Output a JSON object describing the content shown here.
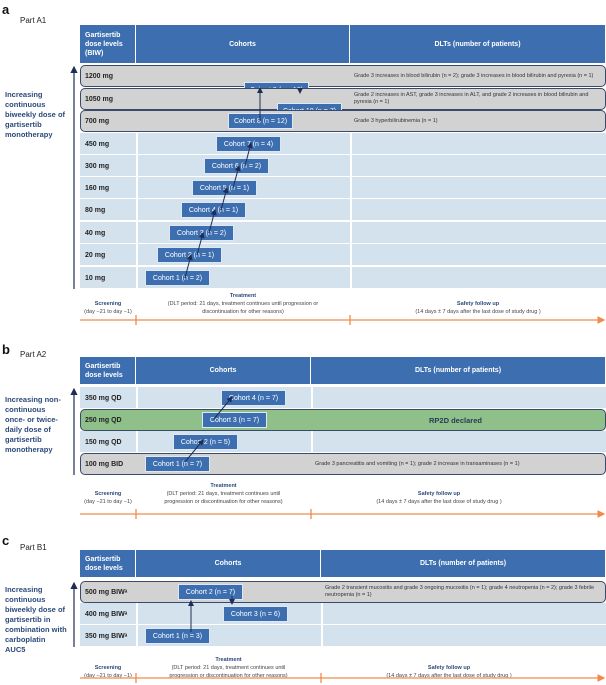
{
  "panels": [
    {
      "letter": "a",
      "part": "Part A1",
      "headers": [
        "Gartisertib dose levels (BIW)",
        "Cohorts",
        "DLTs (number of patients)"
      ],
      "side_label": "Increasing continuous biweekly dose of gartisertib monotherapy",
      "rows": [
        {
          "dose": "1200 mg",
          "cohort": "Cohort 9 (n = 10)",
          "dlt": "Grade 3 increases in blood bilirubin (n = 2); grade 3 increases in blood bilirubin and pyrexia (n = 1)",
          "style": "highlight"
        },
        {
          "dose": "1050 mg",
          "cohort": "Cohort 10 (n = 7)",
          "dlt": "Grade 2 increases in AST, grade 3 increases in ALT, and grade 2 increases in blood bilirubin and pyrexia (n = 1)",
          "style": "highlight"
        },
        {
          "dose": "700 mg",
          "cohort": "Cohort 8 (n = 12)",
          "dlt": "Grade 3 hyperbilirubinemia (n = 1)",
          "style": "highlight"
        },
        {
          "dose": "450 mg",
          "cohort": "Cohort 7 (n = 4)",
          "dlt": "",
          "style": "normal"
        },
        {
          "dose": "300 mg",
          "cohort": "Cohort 6 (n = 2)",
          "dlt": "",
          "style": "normal"
        },
        {
          "dose": "160 mg",
          "cohort": "Cohort 5 (n = 1)",
          "dlt": "",
          "style": "normal"
        },
        {
          "dose": "80 mg",
          "cohort": "Cohort 4 (n = 1)",
          "dlt": "",
          "style": "normal"
        },
        {
          "dose": "40 mg",
          "cohort": "Cohort 3 (n = 2)",
          "dlt": "",
          "style": "normal"
        },
        {
          "dose": "20 mg",
          "cohort": "Cohort 2 (n = 1)",
          "dlt": "",
          "style": "normal"
        },
        {
          "dose": "10 mg",
          "cohort": "Cohort 1 (n = 2)",
          "dlt": "",
          "style": "normal"
        }
      ],
      "timeline": {
        "screening": "Screening",
        "screening_sub": "(day −21 to day −1)",
        "treatment": "Treatment",
        "treatment_sub": "(DLT period: 21 days, treatment continues until progression or discontinuation for other reasons)",
        "followup": "Safety follow up",
        "followup_sub": "(14 days ± 7 days after the last dose of study drug )"
      }
    },
    {
      "letter": "b",
      "part": "Part A2",
      "headers": [
        "Gartisertib dose levels",
        "Cohorts",
        "DLTs (number of patients)"
      ],
      "side_label": "Increasing non-continuous once- or twice-daily dose of gartisertib monotherapy",
      "rows": [
        {
          "dose": "350 mg QD",
          "cohort": "Cohort 4 (n = 7)",
          "dlt": "",
          "style": "normal"
        },
        {
          "dose": "250 mg QD",
          "cohort": "Cohort 3 (n = 7)",
          "dlt": "RP2D declared",
          "style": "green"
        },
        {
          "dose": "150 mg QD",
          "cohort": "Cohort 2 (n = 5)",
          "dlt": "",
          "style": "normal"
        },
        {
          "dose": "100 mg BID",
          "cohort": "Cohort 1 (n = 7)",
          "dlt": "Grade 3 pancreatitis and vomiting (n = 1); grade 2 increase in transaminases (n = 1)",
          "style": "highlight"
        }
      ],
      "timeline": {
        "screening": "Screening",
        "screening_sub": "(day −21 to day −1)",
        "treatment": "Treatment",
        "treatment_sub": "(DLT period: 21 days, treatment continues until progression or discontinuation for other reasons)",
        "followup": "Safety follow up",
        "followup_sub": "(14 days ± 7 days after the last dose of study drug )"
      }
    },
    {
      "letter": "c",
      "part": "Part B1",
      "headers": [
        "Gartisertib dose levels",
        "Cohorts",
        "DLTs (number of patients)"
      ],
      "side_label": "Increasing continuous biweekly dose of gartisertib in combination with carboplatin AUC5",
      "rows": [
        {
          "dose": "500 mg BIWᵃ",
          "cohort": "Cohort 2 (n = 7)",
          "dlt": "Grade 2 transient mucositis and grade 3 ongoing mucositis (n = 1); grade 4 neutropenia (n = 2); grade 3 febrile neutropenia (n = 1)",
          "style": "highlight"
        },
        {
          "dose": "400 mg BIWᵃ",
          "cohort": "Cohort 3 (n = 6)",
          "dlt": "",
          "style": "normal"
        },
        {
          "dose": "350 mg BIWᵃ",
          "cohort": "Cohort 1 (n = 3)",
          "dlt": "",
          "style": "normal"
        }
      ],
      "timeline": {
        "screening": "Screening",
        "screening_sub": "(day −21 to day −1)",
        "treatment": "Treatment",
        "treatment_sub": "(DLT period: 21 days, treatment continues until progression or discontinuation for other reasons)",
        "followup": "Safety follow up",
        "followup_sub": "(14 days ± 7 days after the last dose of study drug )"
      }
    }
  ],
  "colors": {
    "header": "#3d6fb0",
    "row": "#d4e2ee",
    "highlight": "#d2d2d2",
    "rp2d": "#8fc08a",
    "timeline": "#f08a4b",
    "axis": "#1f2d55"
  }
}
